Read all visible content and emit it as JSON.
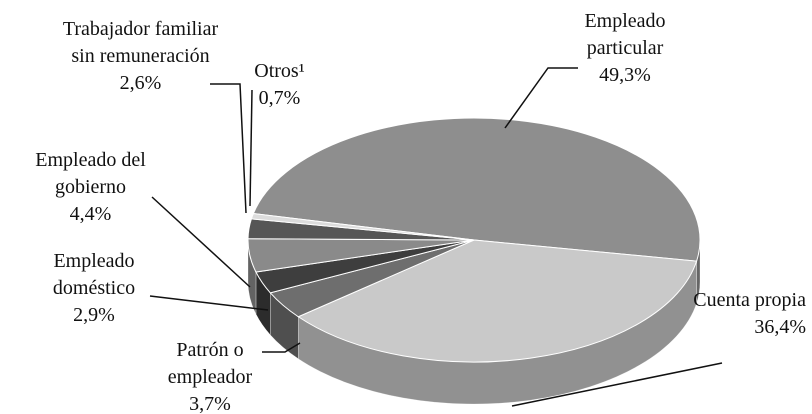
{
  "chart_data": {
    "type": "pie3d",
    "categories": [
      "Empleado particular",
      "Cuenta propia",
      "Patrón o empleador",
      "Empleado doméstico",
      "Empleado del gobierno",
      "Trabajador familiar sin remuneración",
      "Otros¹"
    ],
    "values": [
      49.3,
      36.4,
      3.7,
      2.9,
      4.4,
      2.6,
      0.7
    ],
    "value_labels": [
      "49,3%",
      "36,4%",
      "3,7%",
      "2,9%",
      "4,4%",
      "2,6%",
      "0,7%"
    ],
    "colors": [
      "#8e8e8e",
      "#c9c9c9",
      "#6e6e6e",
      "#3e3e3e",
      "#8a8a8a",
      "#565656",
      "#dcdcdc"
    ]
  }
}
